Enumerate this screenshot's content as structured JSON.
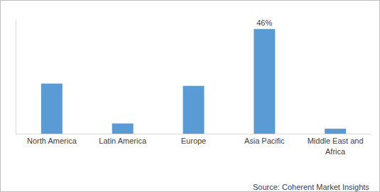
{
  "chart_data": {
    "type": "bar",
    "categories": [
      "North America",
      "Latin America",
      "Europe",
      "Asia Pacific",
      "Middle East and\nAfrica"
    ],
    "values": [
      22,
      4.5,
      21,
      46,
      2.2
    ],
    "value_labels": [
      null,
      null,
      null,
      "46%",
      null
    ],
    "data_labels": true,
    "color": "#5b9bd5",
    "ylim": [
      0,
      50
    ],
    "tick_labels": "x",
    "grid": false,
    "annotations": [
      "Source: Coherent Market Insights"
    ]
  }
}
